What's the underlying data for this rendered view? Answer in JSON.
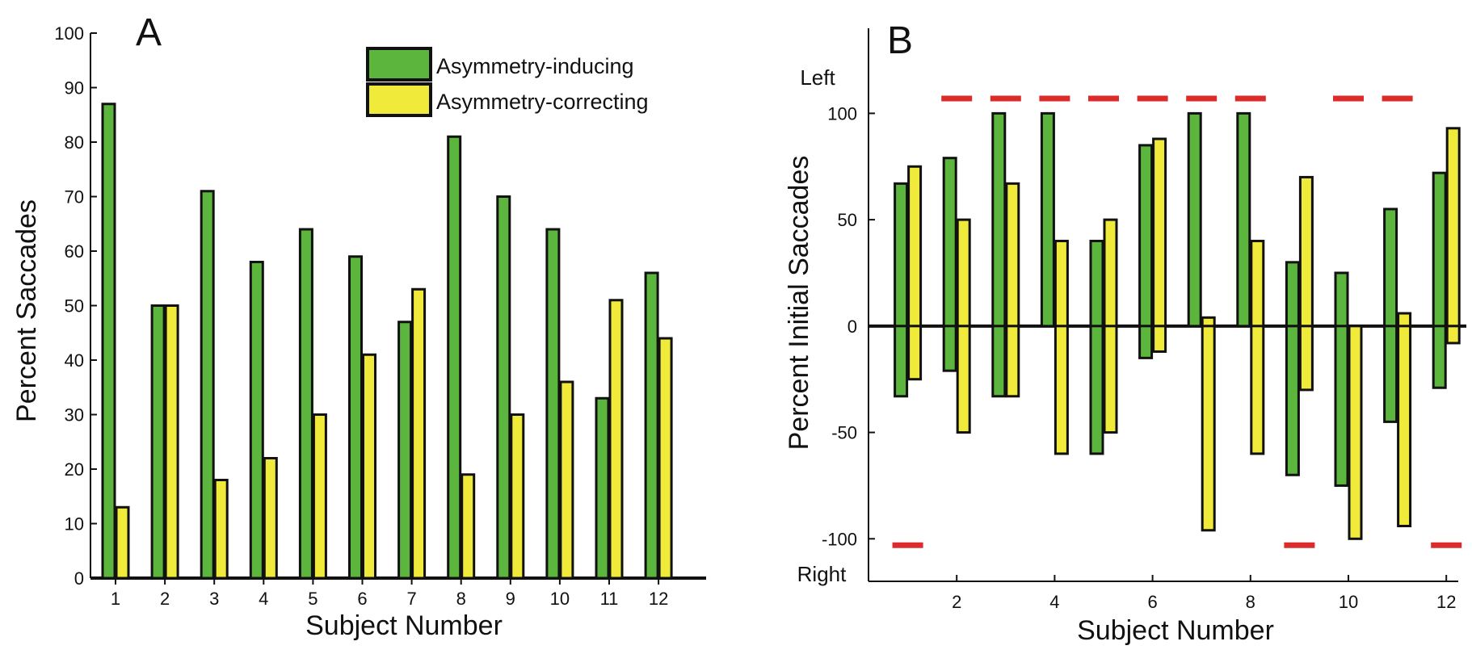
{
  "chart_data": [
    {
      "panel": "A",
      "type": "bar",
      "xlabel": "Subject Number",
      "ylabel": "Percent Saccades",
      "ylim": [
        0,
        100
      ],
      "yticks": [
        0,
        10,
        20,
        30,
        40,
        50,
        60,
        70,
        80,
        90,
        100
      ],
      "categories": [
        "1",
        "2",
        "3",
        "4",
        "5",
        "6",
        "7",
        "8",
        "9",
        "10",
        "11",
        "12"
      ],
      "series": [
        {
          "name": "Asymmetry-inducing",
          "color": "#5cb63e",
          "values": [
            87,
            50,
            71,
            58,
            64,
            59,
            47,
            81,
            70,
            64,
            33,
            56
          ]
        },
        {
          "name": "Asymmetry-correcting",
          "color": "#f0ea3a",
          "values": [
            13,
            50,
            18,
            22,
            30,
            41,
            53,
            19,
            30,
            36,
            51,
            44
          ]
        }
      ],
      "legend_position": "top-right"
    },
    {
      "panel": "B",
      "type": "bar",
      "xlabel": "Subject Number",
      "ylabel": "Percent Initial Saccades",
      "ylim": [
        -120,
        140
      ],
      "yticks": [
        -100,
        -50,
        0,
        50,
        100
      ],
      "xticks": [
        "2",
        "4",
        "6",
        "8",
        "10",
        "12"
      ],
      "side_labels": {
        "top": "Left",
        "bottom": "Right"
      },
      "subjects": [
        1,
        2,
        3,
        4,
        5,
        6,
        7,
        8,
        9,
        10,
        11,
        12
      ],
      "series": [
        {
          "name": "Asymmetry-inducing",
          "color": "#5cb63e",
          "left": [
            67,
            79,
            100,
            100,
            40,
            85,
            100,
            100,
            30,
            25,
            55,
            72
          ],
          "right": [
            -33,
            -21,
            -33,
            0,
            -60,
            -15,
            0,
            0,
            -70,
            -75,
            -45,
            -29
          ]
        },
        {
          "name": "Asymmetry-correcting",
          "color": "#f0ea3a",
          "left": [
            75,
            50,
            67,
            40,
            50,
            88,
            4,
            40,
            70,
            0,
            6,
            93
          ],
          "right": [
            -25,
            -50,
            -33,
            -60,
            -50,
            -12,
            -96,
            -60,
            -30,
            -100,
            -94,
            -8
          ]
        }
      ],
      "reference_color": "#dc2b2b",
      "reference_top": {
        "value": 107,
        "subjects": [
          2,
          3,
          4,
          5,
          6,
          7,
          8,
          10,
          11
        ]
      },
      "reference_bottom": {
        "value": -103,
        "subjects": [
          1,
          9,
          12
        ]
      }
    }
  ]
}
